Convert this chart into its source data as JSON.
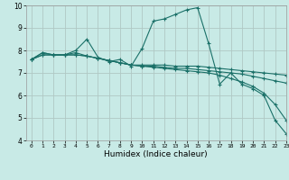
{
  "title": "",
  "xlabel": "Humidex (Indice chaleur)",
  "xlim": [
    -0.5,
    23
  ],
  "ylim": [
    4,
    10
  ],
  "xticks": [
    0,
    1,
    2,
    3,
    4,
    5,
    6,
    7,
    8,
    9,
    10,
    11,
    12,
    13,
    14,
    15,
    16,
    17,
    18,
    19,
    20,
    21,
    22,
    23
  ],
  "yticks": [
    4,
    5,
    6,
    7,
    8,
    9,
    10
  ],
  "bg_color": "#c8eae6",
  "grid_color": "#b0c8c4",
  "line_color": "#1a7068",
  "lines": [
    [
      7.6,
      7.9,
      7.8,
      7.8,
      8.0,
      8.5,
      7.7,
      7.5,
      7.6,
      7.3,
      8.1,
      9.3,
      9.4,
      9.6,
      9.8,
      9.9,
      8.3,
      6.5,
      7.0,
      6.5,
      6.3,
      6.0,
      4.9,
      4.3
    ],
    [
      7.6,
      7.9,
      7.8,
      7.8,
      7.9,
      7.75,
      7.65,
      7.55,
      7.45,
      7.35,
      7.35,
      7.35,
      7.35,
      7.3,
      7.3,
      7.3,
      7.25,
      7.2,
      7.15,
      7.1,
      7.05,
      7.0,
      6.95,
      6.9
    ],
    [
      7.6,
      7.8,
      7.8,
      7.8,
      7.8,
      7.75,
      7.65,
      7.55,
      7.45,
      7.35,
      7.3,
      7.3,
      7.25,
      7.2,
      7.2,
      7.15,
      7.1,
      7.05,
      7.0,
      6.95,
      6.85,
      6.75,
      6.65,
      6.55
    ],
    [
      7.6,
      7.8,
      7.8,
      7.8,
      7.8,
      7.75,
      7.65,
      7.55,
      7.45,
      7.35,
      7.3,
      7.25,
      7.2,
      7.15,
      7.1,
      7.05,
      7.0,
      6.9,
      6.75,
      6.6,
      6.4,
      6.1,
      5.6,
      4.9
    ]
  ]
}
